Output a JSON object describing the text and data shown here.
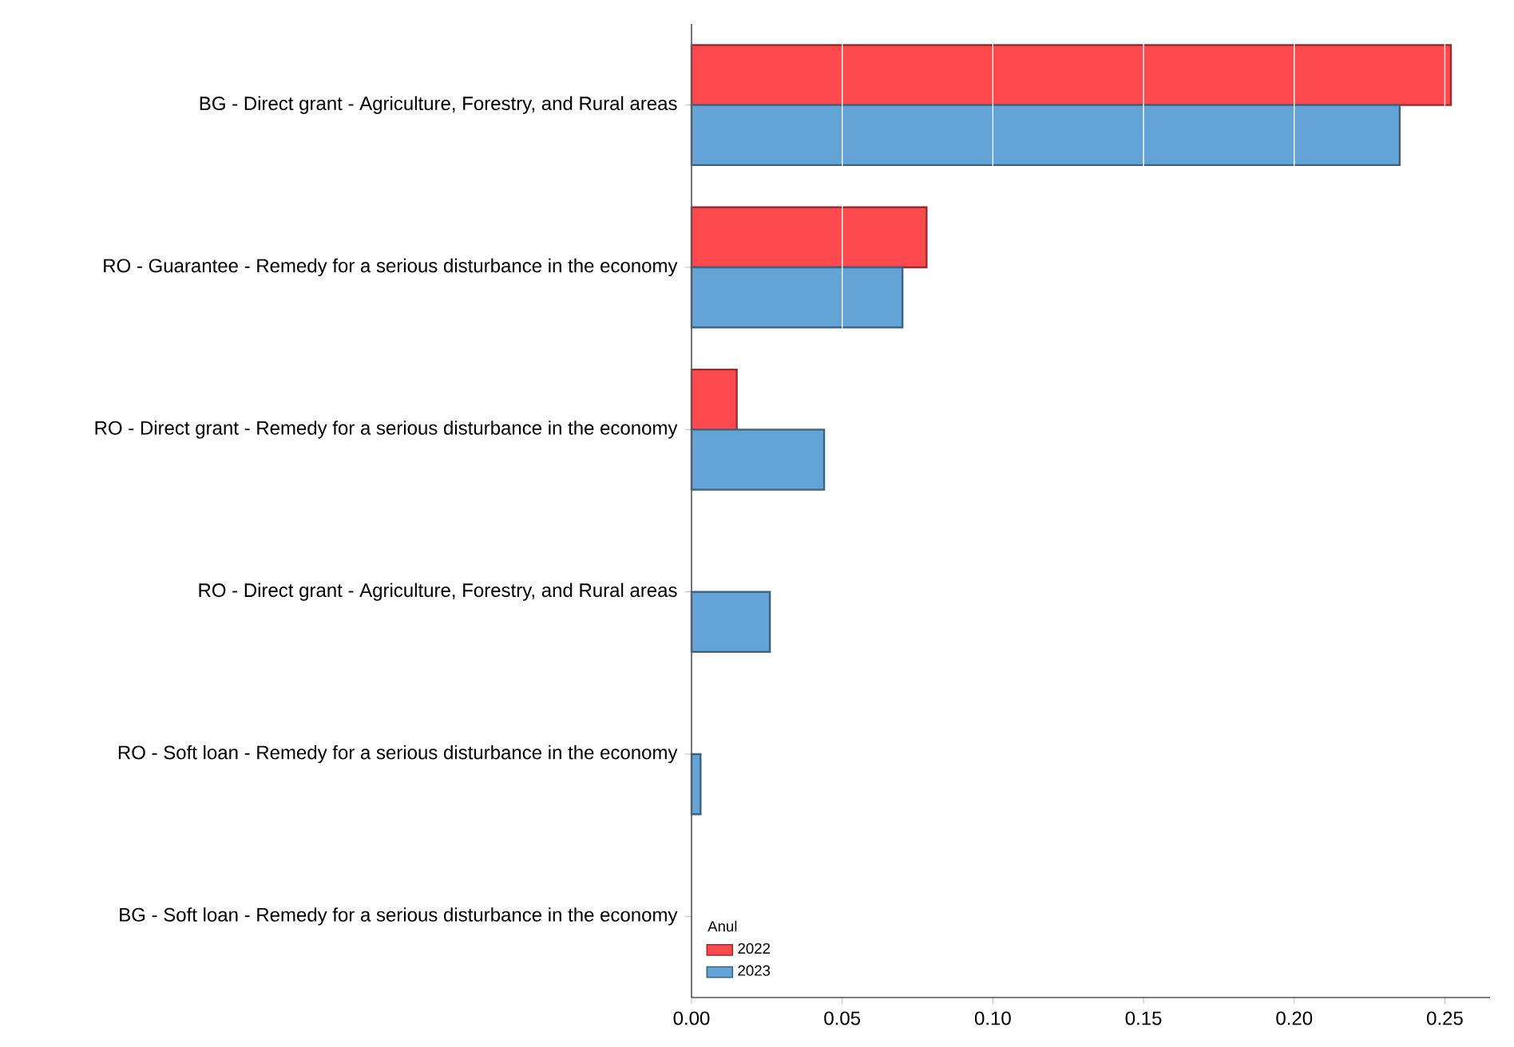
{
  "chart_data": {
    "type": "bar",
    "orientation": "horizontal",
    "categories": [
      "BG - Direct grant - Agriculture, Forestry, and Rural areas",
      "RO - Guarantee - Remedy for a serious disturbance in the economy",
      "RO - Direct grant - Remedy for a serious disturbance in the economy",
      "RO - Direct grant - Agriculture, Forestry, and Rural areas",
      "RO - Soft loan - Remedy for a serious disturbance in the economy",
      "BG - Soft loan - Remedy for a serious disturbance in the economy"
    ],
    "series": [
      {
        "name": "2022",
        "color": "#fe4a4f",
        "values": [
          0.252,
          0.078,
          0.015,
          null,
          null,
          null
        ]
      },
      {
        "name": "2023",
        "color": "#64a3d6",
        "values": [
          0.235,
          0.07,
          0.044,
          0.026,
          0.003,
          null
        ]
      }
    ],
    "xlim": [
      0,
      0.265
    ],
    "xticks": [
      {
        "value": 0,
        "label": "0.00"
      },
      {
        "value": 0.05,
        "label": "0.05"
      },
      {
        "value": 0.1,
        "label": "0.10"
      },
      {
        "value": 0.15,
        "label": "0.15"
      },
      {
        "value": 0.2,
        "label": "0.20"
      },
      {
        "value": 0.25,
        "label": "0.25"
      }
    ],
    "grid": "x",
    "legend": "bottom left",
    "legend_title": "Anul"
  }
}
